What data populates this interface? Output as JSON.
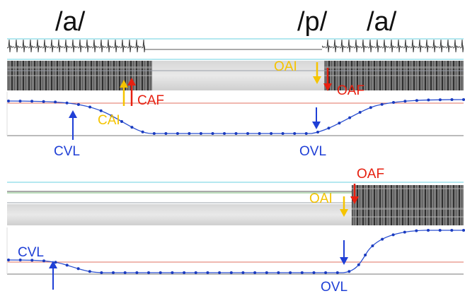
{
  "phonemes": {
    "a1": "/a/",
    "p": "/p/",
    "a2": "/a/"
  },
  "colors": {
    "closure_velocity": "#1f3fd6",
    "acoustic_initiation": "#f5c400",
    "acoustic_final": "#e62010",
    "trajectory": "#2a4fd0",
    "dots": "#1a3bbf",
    "ref_line": "#e07060",
    "hline_cyan": "#6ad0e0",
    "hline_green": "#7bbf7b",
    "hline_gray": "#9aa0aa"
  },
  "panel_top": {
    "labels": {
      "cvl": "CVL",
      "cai": "CAI",
      "caf": "CAF",
      "oai": "OAI",
      "oaf": "OAF",
      "ovl": "OVL"
    }
  },
  "panel_bottom": {
    "labels": {
      "cvl": "CVL",
      "oai": "OAI",
      "oaf": "OAF",
      "ovl": "OVL"
    }
  }
}
